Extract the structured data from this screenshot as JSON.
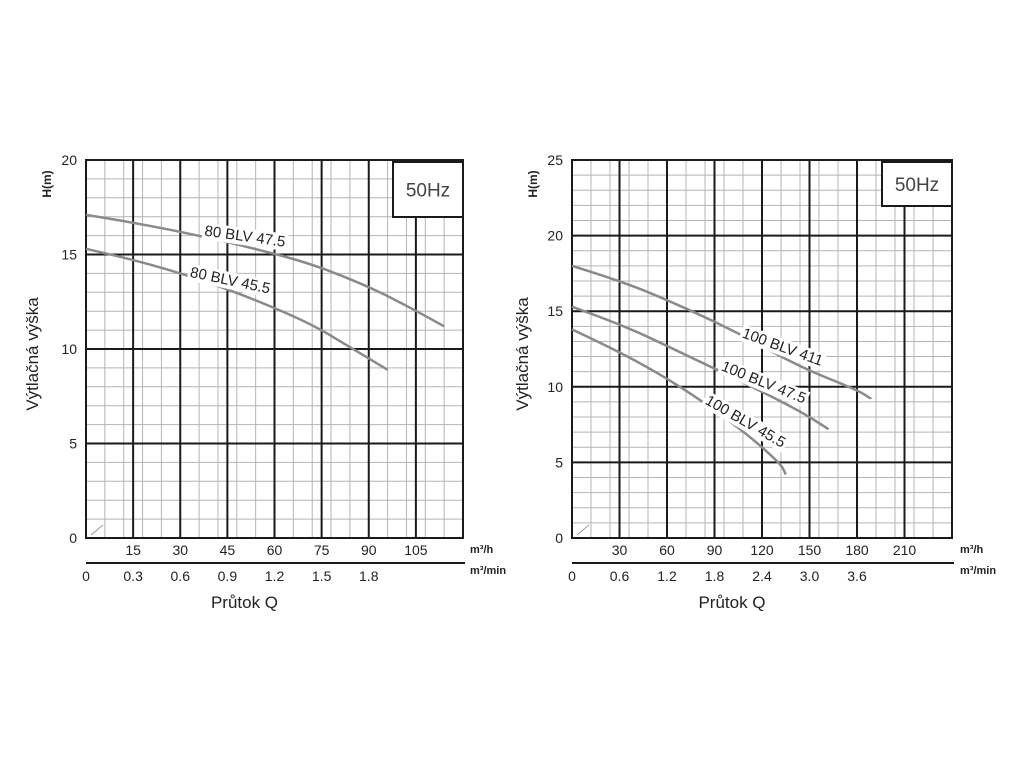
{
  "chart_data": [
    {
      "type": "line",
      "frequency_label": "50Hz",
      "ylabel": "Výtlačná výška",
      "y_unit": "H(m)",
      "xlabel": "Průtok Q",
      "x_unit_top": "m³/h",
      "x_unit_bottom": "m³/min",
      "ylim": [
        0,
        20
      ],
      "xlim": [
        0,
        2.0
      ],
      "y_ticks": [
        "0",
        "5",
        "10",
        "15",
        "20"
      ],
      "x_ticks_m3h": [
        "15",
        "30",
        "45",
        "60",
        "75",
        "90",
        "105"
      ],
      "x_ticks_m3min": [
        "0",
        "0.3",
        "0.6",
        "0.9",
        "1.2",
        "1.5",
        "1.8"
      ],
      "grid": true,
      "series": [
        {
          "name": "80 BLV 47.5",
          "points": [
            [
              0,
              17.1
            ],
            [
              0.3,
              16.6
            ],
            [
              0.6,
              16.0
            ],
            [
              0.9,
              15.3
            ],
            [
              1.2,
              14.5
            ],
            [
              1.5,
              13.3
            ],
            [
              1.7,
              12.3
            ],
            [
              1.9,
              11.2
            ]
          ]
        },
        {
          "name": "80 BLV 45.5",
          "points": [
            [
              0,
              15.3
            ],
            [
              0.3,
              14.6
            ],
            [
              0.6,
              13.7
            ],
            [
              0.9,
              12.6
            ],
            [
              1.2,
              11.3
            ],
            [
              1.4,
              10.1
            ],
            [
              1.6,
              8.9
            ]
          ]
        }
      ]
    },
    {
      "type": "line",
      "frequency_label": "50Hz",
      "ylabel": "Výtlačná výška",
      "y_unit": "H(m)",
      "xlabel": "Průtok Q",
      "x_unit_top": "m³/h",
      "x_unit_bottom": "m³/min",
      "ylim": [
        0,
        25
      ],
      "xlim": [
        0,
        4.0
      ],
      "y_ticks": [
        "0",
        "5",
        "10",
        "15",
        "20",
        "25"
      ],
      "x_ticks_m3h": [
        "30",
        "60",
        "90",
        "120",
        "150",
        "180",
        "210"
      ],
      "x_ticks_m3min": [
        "0",
        "0.6",
        "1.2",
        "1.8",
        "2.4",
        "3.0",
        "3.6"
      ],
      "grid": true,
      "series": [
        {
          "name": "100 BLV 411",
          "points": [
            [
              0,
              18.0
            ],
            [
              0.6,
              16.8
            ],
            [
              1.2,
              15.2
            ],
            [
              1.8,
              13.4
            ],
            [
              2.4,
              11.3
            ],
            [
              3.0,
              9.8
            ],
            [
              3.15,
              9.2
            ]
          ]
        },
        {
          "name": "100 BLV 47.5",
          "points": [
            [
              0,
              15.3
            ],
            [
              0.6,
              13.9
            ],
            [
              1.2,
              12.1
            ],
            [
              1.8,
              10.3
            ],
            [
              2.4,
              8.4
            ],
            [
              2.7,
              7.2
            ]
          ]
        },
        {
          "name": "100 BLV 45.5",
          "points": [
            [
              0,
              13.8
            ],
            [
              0.6,
              12.0
            ],
            [
              1.2,
              9.8
            ],
            [
              1.8,
              7.1
            ],
            [
              2.2,
              4.9
            ],
            [
              2.25,
              4.2
            ]
          ]
        }
      ]
    }
  ]
}
